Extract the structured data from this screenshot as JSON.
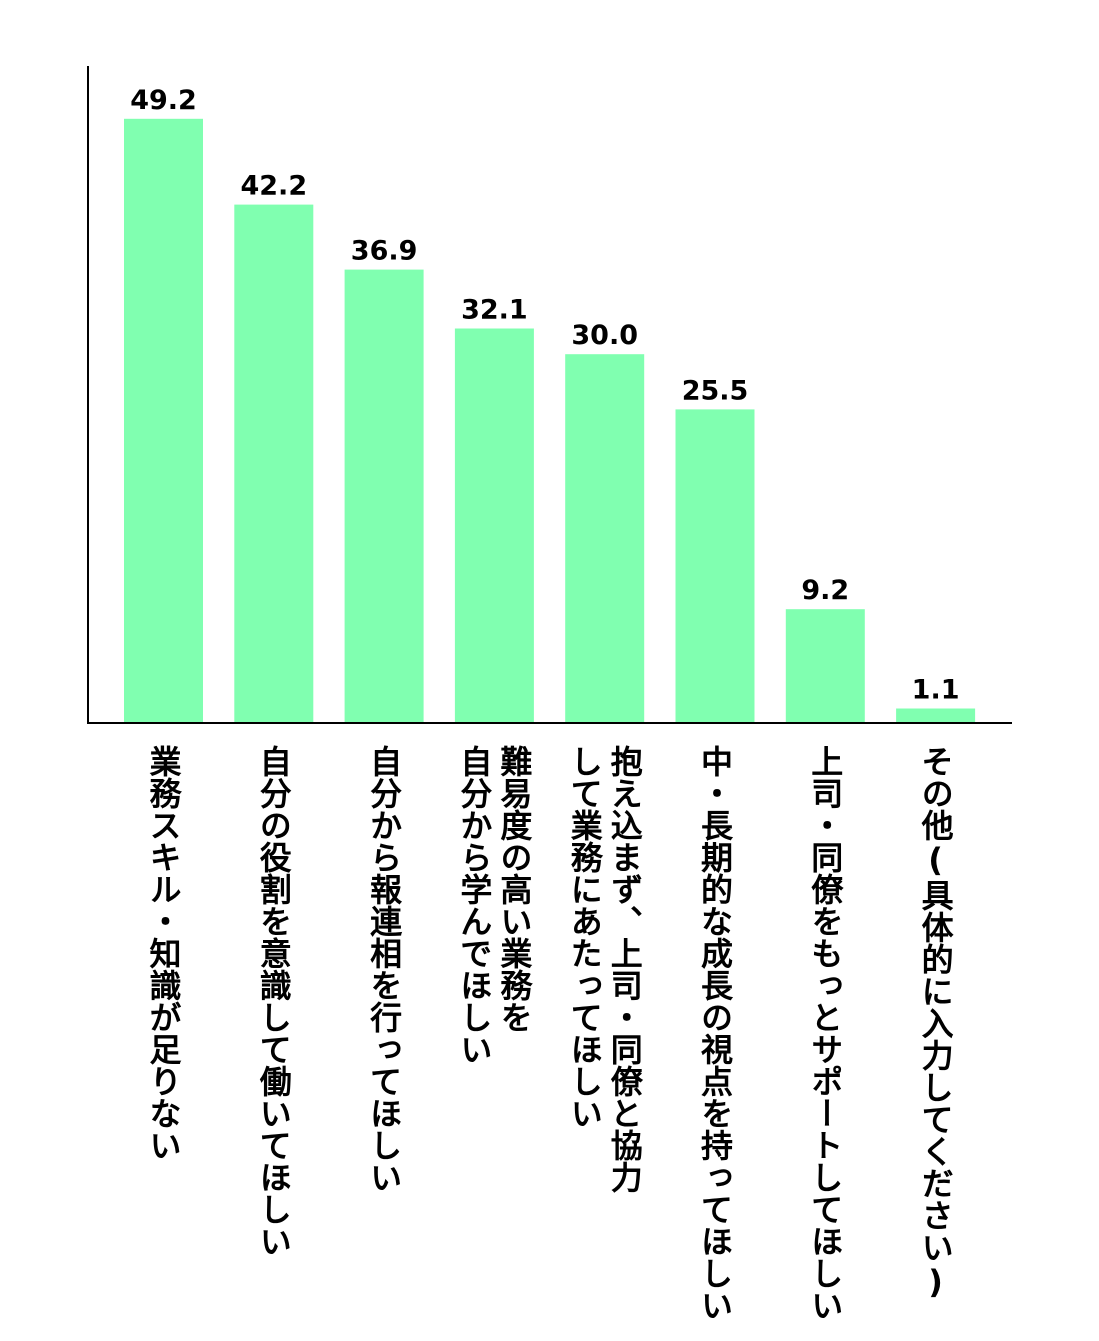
{
  "chart_data": {
    "type": "bar",
    "orientation": "vertical",
    "title": "",
    "xlabel": "",
    "ylabel": "",
    "ylim": [
      0,
      53
    ],
    "grid": false,
    "legend": "none",
    "bar_color": "#80FFB0",
    "categories": [
      "業務スキル・知識が足りない",
      "自分の役割を意識して働いてほしい",
      "自分から報連相を行ってほしい",
      "難易度の高い業務を\n自分から学んでほしい",
      "抱え込まず、上司・同僚と協力\nして業務にあたってほしい",
      "中・長期的な成長の視点を持ってほしい",
      "上司・同僚をもっとサポートしてほしい",
      "その他(具体的に入力してください)"
    ],
    "values": [
      49.2,
      42.2,
      36.9,
      32.1,
      30.0,
      25.5,
      9.2,
      1.1
    ],
    "value_labels": [
      "49.2",
      "42.2",
      "36.9",
      "32.1",
      "30.0",
      "25.5",
      "9.2",
      "1.1"
    ]
  }
}
